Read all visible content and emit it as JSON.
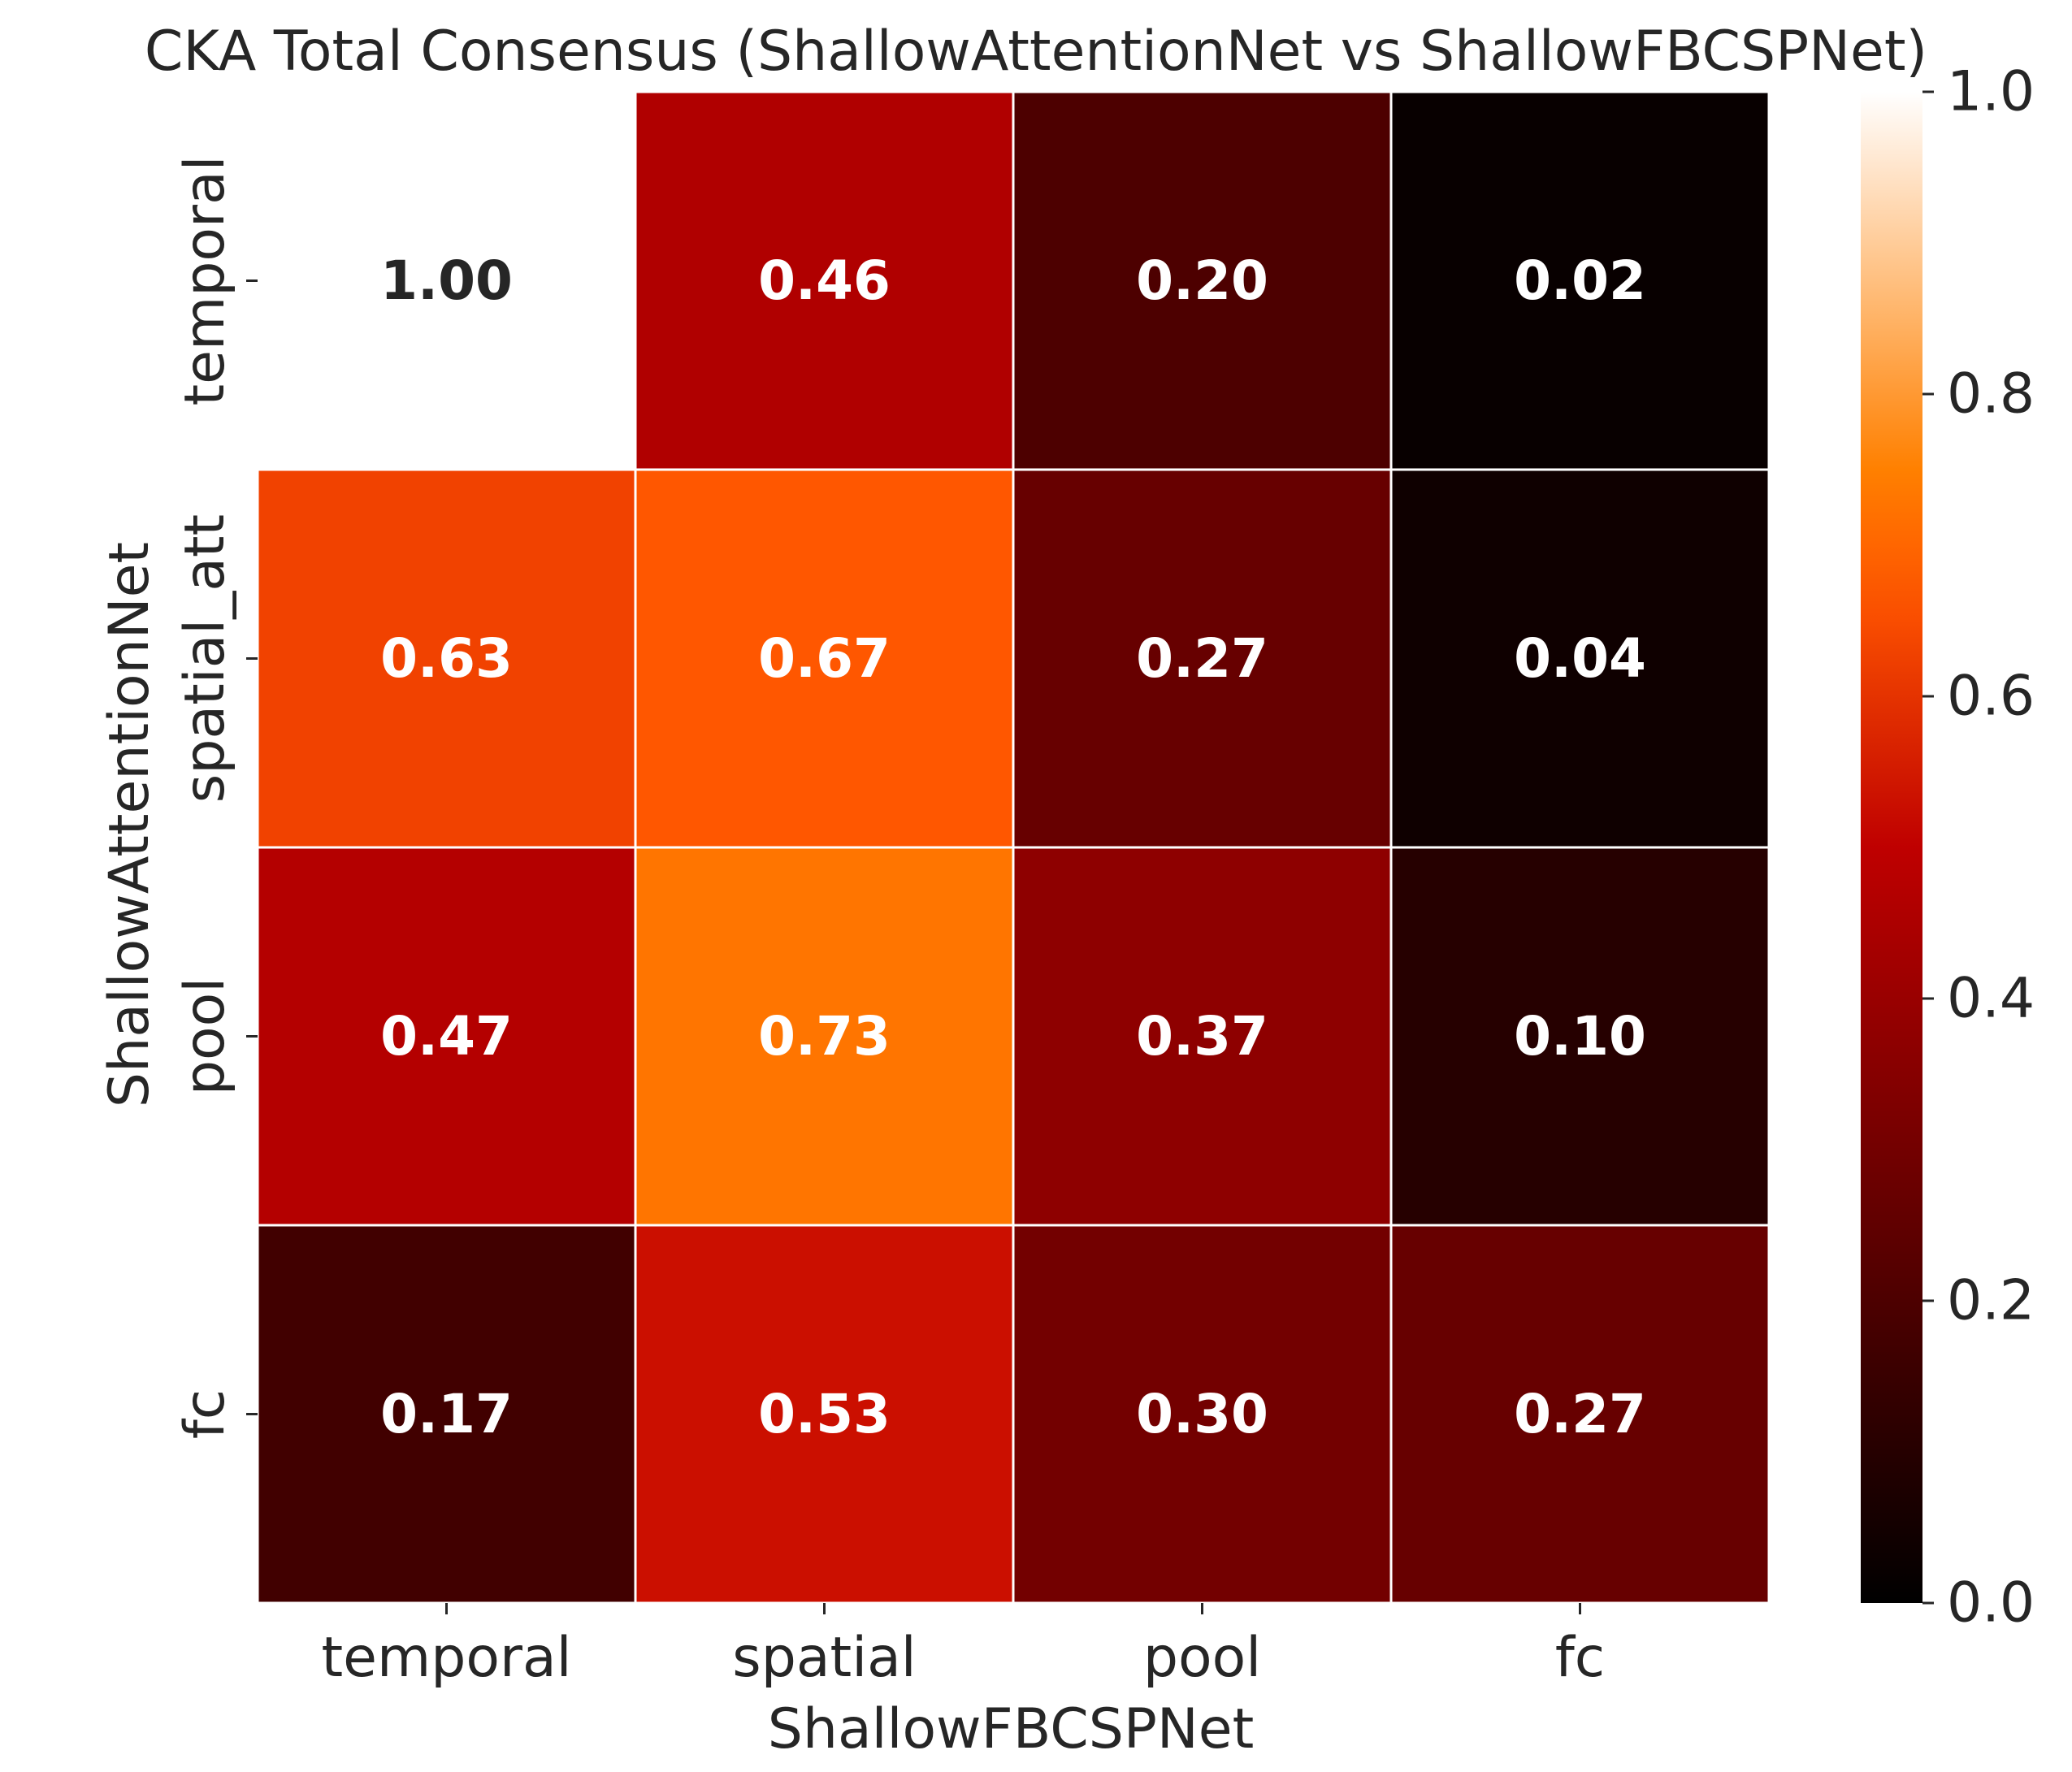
{
  "chart_data": {
    "type": "heatmap",
    "title": "CKA Total Consensus (ShallowAttentionNet vs ShallowFBCSPNet)",
    "xlabel": "ShallowFBCSPNet",
    "ylabel": "ShallowAttentionNet",
    "x_categories": [
      "temporal",
      "spatial",
      "pool",
      "fc"
    ],
    "y_categories": [
      "temporal",
      "spatial_att",
      "pool",
      "fc"
    ],
    "values": [
      [
        1.0,
        0.46,
        0.2,
        0.02
      ],
      [
        0.63,
        0.67,
        0.27,
        0.04
      ],
      [
        0.47,
        0.73,
        0.37,
        0.1
      ],
      [
        0.17,
        0.53,
        0.3,
        0.27
      ]
    ],
    "value_labels": [
      [
        "1.00",
        "0.46",
        "0.20",
        "0.02"
      ],
      [
        "0.63",
        "0.67",
        "0.27",
        "0.04"
      ],
      [
        "0.47",
        "0.73",
        "0.37",
        "0.10"
      ],
      [
        "0.17",
        "0.53",
        "0.30",
        "0.27"
      ]
    ],
    "colormap": "gist_heat",
    "colorbar": {
      "range": [
        0.0,
        1.0
      ],
      "ticks": [
        0.0,
        0.2,
        0.4,
        0.6,
        0.8,
        1.0
      ],
      "tick_labels": [
        "0.0",
        "0.2",
        "0.4",
        "0.6",
        "0.8",
        "1.0"
      ]
    },
    "annotation_colors": {
      "dark_text": "#262626",
      "light_text": "#ffffff"
    },
    "cell_border_color": "#ffffff"
  }
}
